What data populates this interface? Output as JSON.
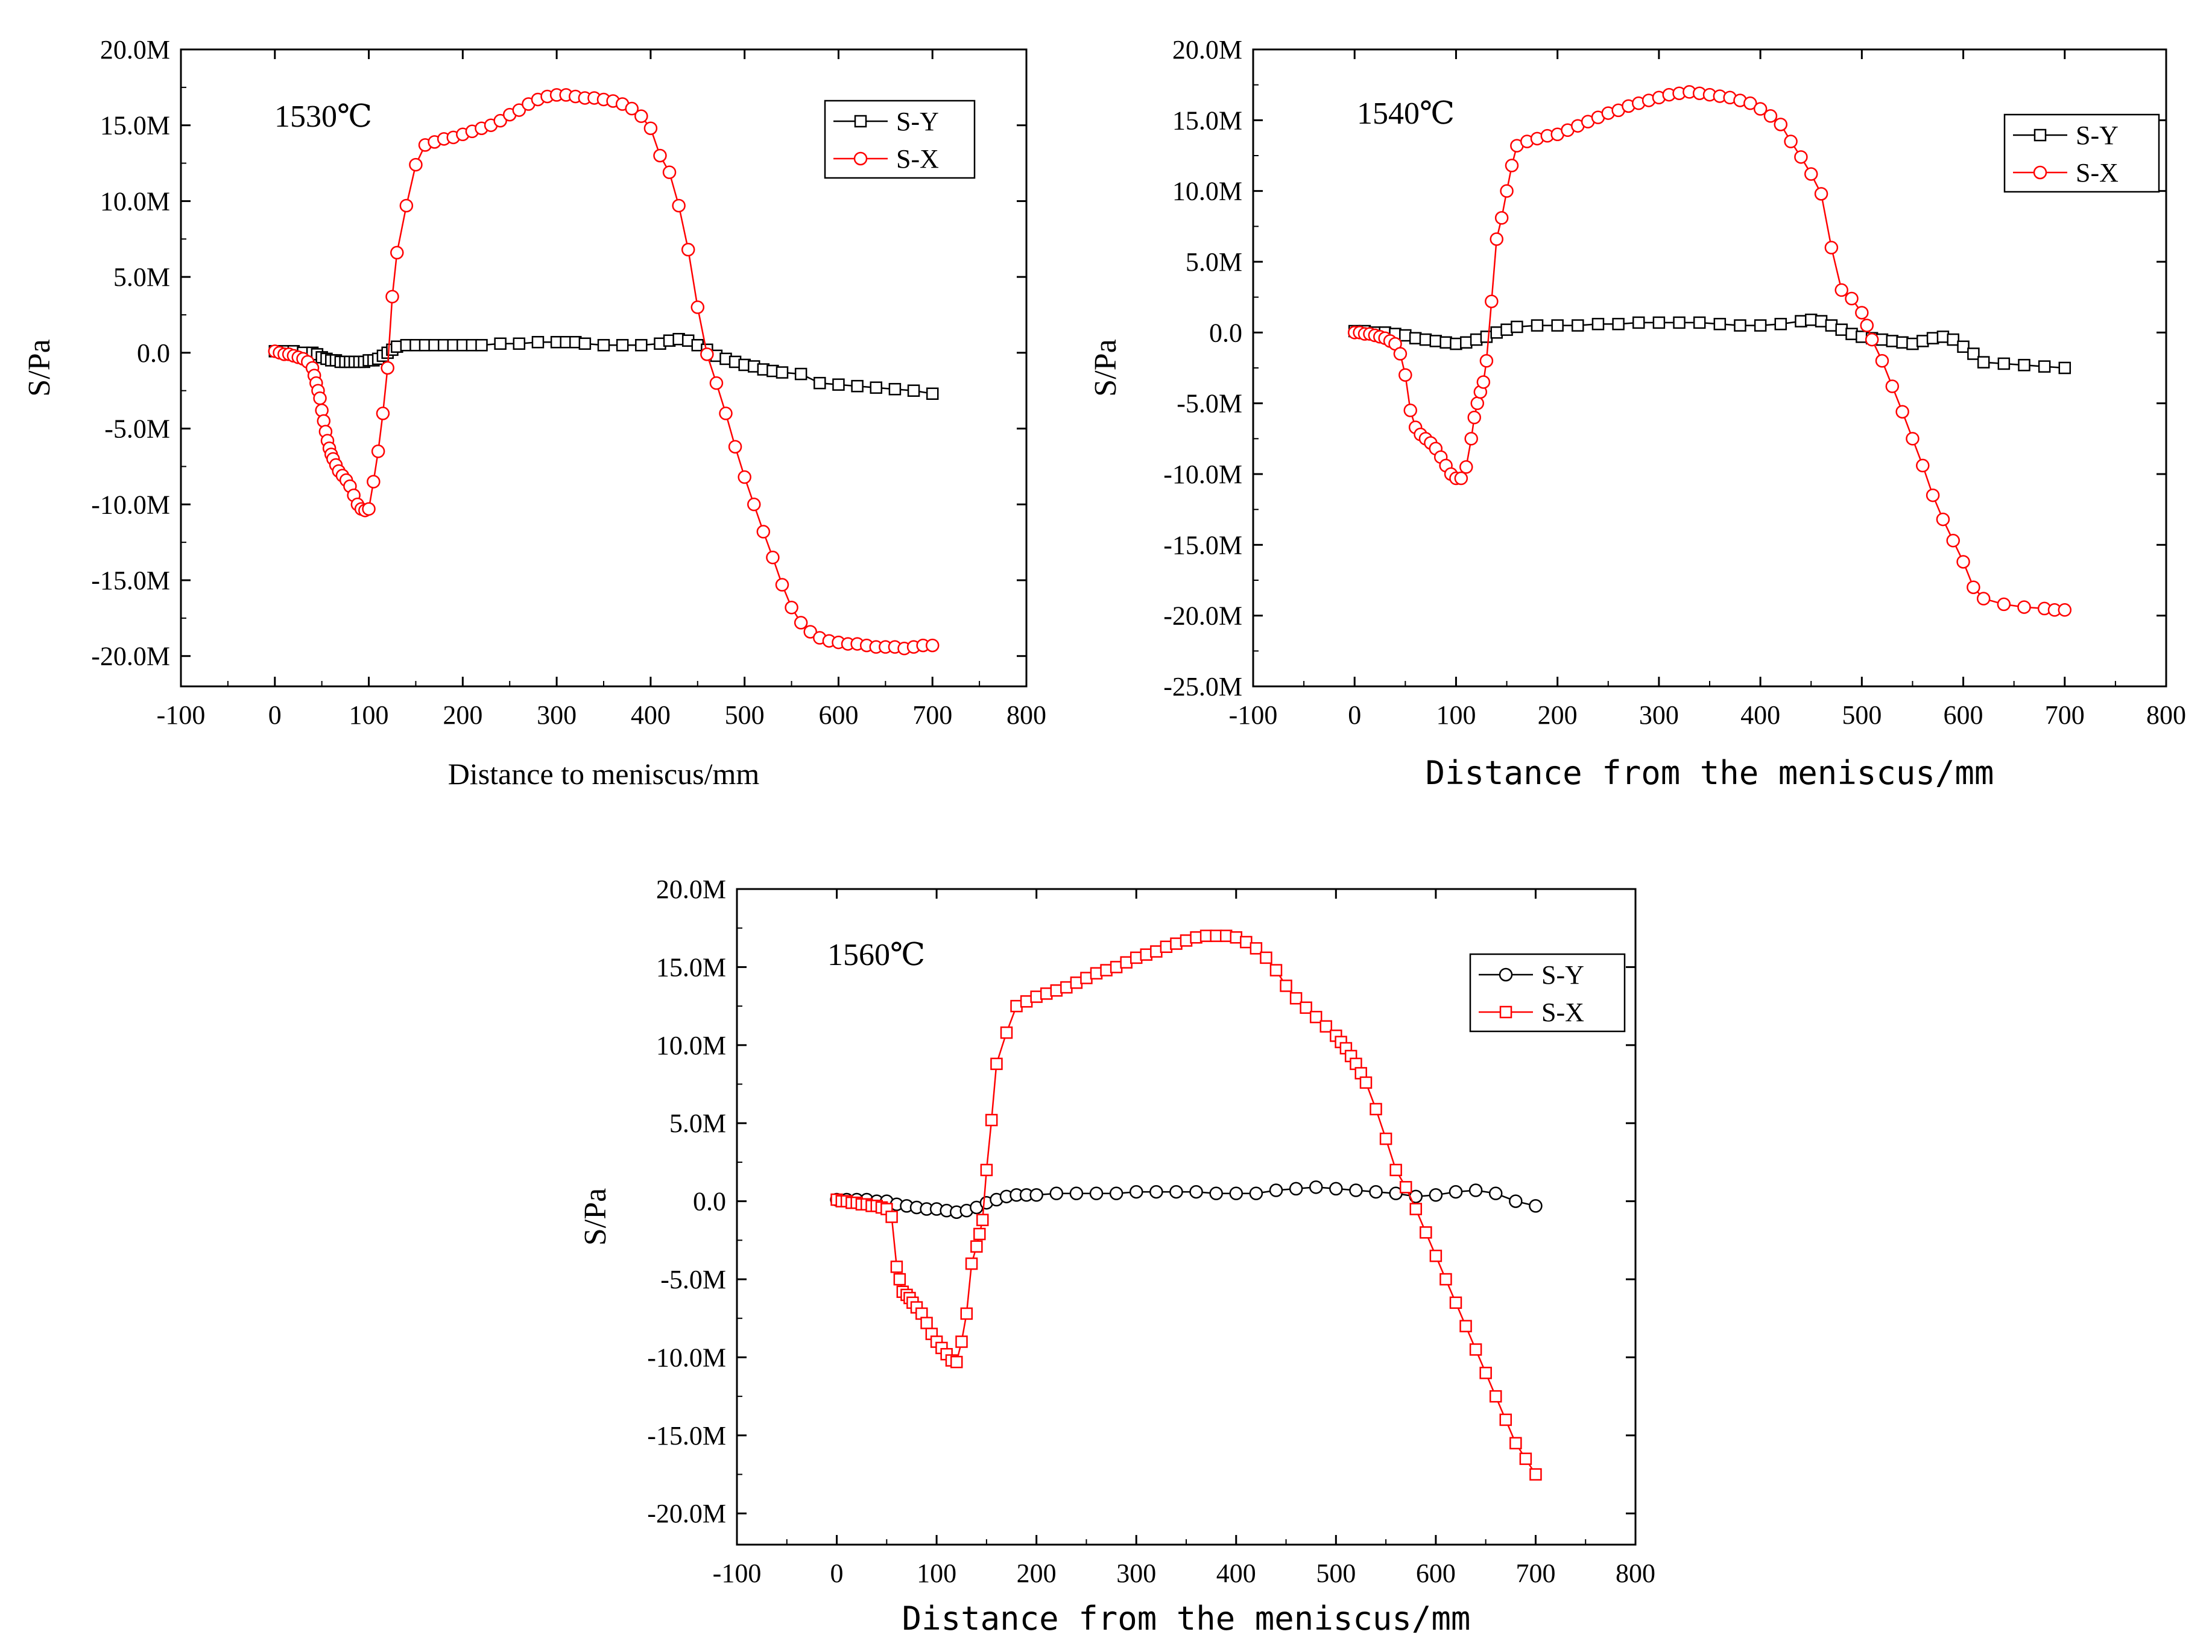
{
  "colors": {
    "sy": "#000000",
    "sx": "#ff0000",
    "axis": "#000000",
    "background": "#ffffff"
  },
  "chart_data": [
    {
      "type": "line",
      "title": "",
      "annotation": "1530℃",
      "xlabel": "Distance to meniscus/mm",
      "ylabel": "S/Pa",
      "xlim": [
        -100,
        800
      ],
      "ylim": [
        -22,
        20
      ],
      "xticks": [
        -100,
        0,
        100,
        200,
        300,
        400,
        500,
        600,
        700,
        800
      ],
      "xtick_labels": [
        "-100",
        "0",
        "100",
        "200",
        "300",
        "400",
        "500",
        "600",
        "700",
        "800"
      ],
      "yticks": [
        20,
        15,
        10,
        5,
        0,
        -5,
        -10,
        -15,
        -20
      ],
      "ytick_labels": [
        "20.0M",
        "15.0M",
        "10.0M",
        "5.0M",
        "0.0",
        "-5.0M",
        "-10.0M",
        "-15.0M",
        "-20.0M"
      ],
      "y_unit_note": "values in MPa (M)",
      "legend_position": "top-right",
      "series": [
        {
          "name": "S-Y",
          "marker": "square",
          "color": "#000000",
          "x": [
            0,
            10,
            20,
            30,
            40,
            45,
            50,
            55,
            60,
            65,
            70,
            75,
            80,
            85,
            90,
            95,
            100,
            105,
            110,
            115,
            120,
            125,
            130,
            140,
            150,
            160,
            170,
            180,
            190,
            200,
            210,
            220,
            240,
            260,
            280,
            300,
            310,
            320,
            330,
            350,
            370,
            390,
            410,
            420,
            430,
            440,
            450,
            460,
            470,
            480,
            490,
            500,
            510,
            520,
            530,
            540,
            560,
            580,
            600,
            620,
            640,
            660,
            680,
            700
          ],
          "y": [
            0.1,
            0.1,
            0.1,
            0.0,
            0.0,
            -0.1,
            -0.3,
            -0.4,
            -0.5,
            -0.5,
            -0.6,
            -0.6,
            -0.6,
            -0.6,
            -0.6,
            -0.6,
            -0.5,
            -0.5,
            -0.4,
            -0.2,
            0.0,
            0.2,
            0.4,
            0.5,
            0.5,
            0.5,
            0.5,
            0.5,
            0.5,
            0.5,
            0.5,
            0.5,
            0.6,
            0.6,
            0.7,
            0.7,
            0.7,
            0.7,
            0.6,
            0.5,
            0.5,
            0.5,
            0.6,
            0.8,
            0.9,
            0.8,
            0.5,
            0.2,
            -0.2,
            -0.4,
            -0.6,
            -0.8,
            -0.9,
            -1.1,
            -1.2,
            -1.3,
            -1.4,
            -2.0,
            -2.1,
            -2.2,
            -2.3,
            -2.4,
            -2.5,
            -2.7
          ]
        },
        {
          "name": "S-X",
          "marker": "circle",
          "color": "#ff0000",
          "x": [
            0,
            5,
            10,
            15,
            20,
            25,
            30,
            35,
            40,
            42,
            44,
            46,
            48,
            50,
            52,
            54,
            56,
            58,
            60,
            62,
            65,
            68,
            72,
            76,
            80,
            84,
            88,
            92,
            96,
            100,
            105,
            110,
            115,
            120,
            125,
            130,
            140,
            150,
            160,
            170,
            180,
            190,
            200,
            210,
            220,
            230,
            240,
            250,
            260,
            270,
            280,
            290,
            300,
            310,
            320,
            330,
            340,
            350,
            360,
            370,
            380,
            390,
            400,
            410,
            420,
            430,
            440,
            450,
            460,
            470,
            480,
            490,
            500,
            510,
            520,
            530,
            540,
            550,
            560,
            570,
            580,
            590,
            600,
            610,
            620,
            630,
            640,
            650,
            660,
            670,
            680,
            690,
            700
          ],
          "y": [
            0.1,
            0.0,
            -0.1,
            -0.1,
            -0.2,
            -0.3,
            -0.4,
            -0.6,
            -1.0,
            -1.5,
            -2.0,
            -2.5,
            -3.0,
            -3.8,
            -4.5,
            -5.2,
            -5.8,
            -6.3,
            -6.7,
            -7.0,
            -7.4,
            -7.8,
            -8.1,
            -8.4,
            -8.8,
            -9.4,
            -10.0,
            -10.3,
            -10.4,
            -10.3,
            -8.5,
            -6.5,
            -4.0,
            -1.0,
            3.7,
            6.6,
            9.7,
            12.4,
            13.7,
            13.9,
            14.1,
            14.2,
            14.4,
            14.6,
            14.8,
            15.0,
            15.3,
            15.7,
            16.0,
            16.4,
            16.7,
            16.9,
            17.0,
            17.0,
            16.9,
            16.8,
            16.8,
            16.7,
            16.6,
            16.4,
            16.1,
            15.6,
            14.8,
            13.0,
            11.9,
            9.7,
            6.8,
            3.0,
            -0.1,
            -2.0,
            -4.0,
            -6.2,
            -8.2,
            -10.0,
            -11.8,
            -13.5,
            -15.3,
            -16.8,
            -17.8,
            -18.4,
            -18.8,
            -19.0,
            -19.1,
            -19.2,
            -19.2,
            -19.3,
            -19.4,
            -19.4,
            -19.4,
            -19.5,
            -19.4,
            -19.3,
            -19.3
          ]
        }
      ]
    },
    {
      "type": "line",
      "title": "",
      "annotation": "1540℃",
      "xlabel": "Distance from the meniscus/mm",
      "ylabel": "S/Pa",
      "xlim": [
        -100,
        800
      ],
      "ylim": [
        -25,
        20
      ],
      "xticks": [
        -100,
        0,
        100,
        200,
        300,
        400,
        500,
        600,
        700,
        800
      ],
      "xtick_labels": [
        "-100",
        "0",
        "100",
        "200",
        "300",
        "400",
        "500",
        "600",
        "700",
        "800"
      ],
      "yticks": [
        20,
        15,
        10,
        5,
        0,
        -5,
        -10,
        -15,
        -20,
        -25
      ],
      "ytick_labels": [
        "20.0M",
        "15.0M",
        "10.0M",
        "5.0M",
        "0.0",
        "-5.0M",
        "-10.0M",
        "-15.0M",
        "-20.0M",
        "-25.0M"
      ],
      "y_unit_note": "values in MPa (M)",
      "legend_position": "top-right",
      "series": [
        {
          "name": "S-Y",
          "marker": "square",
          "color": "#000000",
          "x": [
            0,
            10,
            20,
            30,
            40,
            50,
            60,
            70,
            80,
            90,
            100,
            110,
            120,
            130,
            140,
            150,
            160,
            180,
            200,
            220,
            240,
            260,
            280,
            300,
            320,
            340,
            360,
            380,
            400,
            420,
            440,
            450,
            460,
            470,
            480,
            490,
            500,
            510,
            520,
            530,
            540,
            550,
            560,
            570,
            580,
            590,
            600,
            610,
            620,
            640,
            660,
            680,
            700
          ],
          "y": [
            0.1,
            0.1,
            0.0,
            0.0,
            -0.1,
            -0.2,
            -0.4,
            -0.5,
            -0.6,
            -0.7,
            -0.8,
            -0.7,
            -0.5,
            -0.3,
            0.0,
            0.2,
            0.4,
            0.5,
            0.5,
            0.5,
            0.6,
            0.6,
            0.7,
            0.7,
            0.7,
            0.7,
            0.6,
            0.5,
            0.5,
            0.6,
            0.8,
            0.9,
            0.8,
            0.5,
            0.2,
            -0.1,
            -0.3,
            -0.4,
            -0.5,
            -0.6,
            -0.7,
            -0.8,
            -0.6,
            -0.4,
            -0.3,
            -0.5,
            -1.0,
            -1.5,
            -2.1,
            -2.2,
            -2.3,
            -2.4,
            -2.5
          ]
        },
        {
          "name": "S-X",
          "marker": "circle",
          "color": "#ff0000",
          "x": [
            0,
            5,
            10,
            15,
            20,
            25,
            30,
            35,
            40,
            45,
            50,
            55,
            60,
            65,
            70,
            75,
            80,
            85,
            90,
            95,
            100,
            105,
            110,
            115,
            118,
            121,
            124,
            127,
            130,
            135,
            140,
            145,
            150,
            155,
            160,
            170,
            180,
            190,
            200,
            210,
            220,
            230,
            240,
            250,
            260,
            270,
            280,
            290,
            300,
            310,
            320,
            330,
            340,
            350,
            360,
            370,
            380,
            390,
            400,
            410,
            420,
            430,
            440,
            450,
            460,
            470,
            480,
            490,
            500,
            505,
            510,
            520,
            530,
            540,
            550,
            560,
            570,
            580,
            590,
            600,
            610,
            620,
            640,
            660,
            680,
            690,
            700
          ],
          "y": [
            0.0,
            0.0,
            -0.1,
            -0.1,
            -0.2,
            -0.3,
            -0.4,
            -0.6,
            -0.8,
            -1.5,
            -3.0,
            -5.5,
            -6.7,
            -7.2,
            -7.5,
            -7.8,
            -8.2,
            -8.8,
            -9.4,
            -10.0,
            -10.3,
            -10.3,
            -9.5,
            -7.5,
            -6.0,
            -5.0,
            -4.2,
            -3.5,
            -2.0,
            2.2,
            6.6,
            8.1,
            10.0,
            11.8,
            13.2,
            13.5,
            13.7,
            13.9,
            14.0,
            14.3,
            14.6,
            14.9,
            15.2,
            15.5,
            15.7,
            16.0,
            16.2,
            16.4,
            16.6,
            16.8,
            16.9,
            17.0,
            16.9,
            16.8,
            16.7,
            16.6,
            16.4,
            16.2,
            15.8,
            15.3,
            14.7,
            13.5,
            12.4,
            11.2,
            9.8,
            6.0,
            3.0,
            2.4,
            1.4,
            0.5,
            -0.5,
            -2.0,
            -3.8,
            -5.6,
            -7.5,
            -9.4,
            -11.5,
            -13.2,
            -14.7,
            -16.2,
            -18.0,
            -18.8,
            -19.2,
            -19.4,
            -19.5,
            -19.6,
            -19.6
          ]
        }
      ]
    },
    {
      "type": "line",
      "title": "",
      "annotation": "1560℃",
      "xlabel": "Distance from the meniscus/mm",
      "ylabel": "S/Pa",
      "xlim": [
        -100,
        800
      ],
      "ylim": [
        -22,
        20
      ],
      "xticks": [
        -100,
        0,
        100,
        200,
        300,
        400,
        500,
        600,
        700,
        800
      ],
      "xtick_labels": [
        "-100",
        "0",
        "100",
        "200",
        "300",
        "400",
        "500",
        "600",
        "700",
        "800"
      ],
      "yticks": [
        20,
        15,
        10,
        5,
        0,
        -5,
        -10,
        -15,
        -20
      ],
      "ytick_labels": [
        "20.0M",
        "15.0M",
        "10.0M",
        "5.0M",
        "0.0",
        "-5.0M",
        "-10.0M",
        "-15.0M",
        "-20.0M"
      ],
      "y_unit_note": "values in MPa (M)",
      "legend_position": "top-right",
      "series": [
        {
          "name": "S-Y",
          "marker": "circle",
          "color": "#000000",
          "x": [
            0,
            10,
            20,
            30,
            40,
            50,
            60,
            70,
            80,
            90,
            100,
            110,
            120,
            130,
            140,
            150,
            160,
            170,
            180,
            190,
            200,
            220,
            240,
            260,
            280,
            300,
            320,
            340,
            360,
            380,
            400,
            420,
            440,
            460,
            480,
            500,
            520,
            540,
            560,
            580,
            600,
            620,
            640,
            660,
            680,
            700
          ],
          "y": [
            0.1,
            0.1,
            0.1,
            0.1,
            0.0,
            0.0,
            -0.2,
            -0.3,
            -0.4,
            -0.5,
            -0.5,
            -0.6,
            -0.7,
            -0.6,
            -0.4,
            -0.1,
            0.1,
            0.3,
            0.4,
            0.4,
            0.4,
            0.5,
            0.5,
            0.5,
            0.5,
            0.6,
            0.6,
            0.6,
            0.6,
            0.5,
            0.5,
            0.5,
            0.7,
            0.8,
            0.9,
            0.8,
            0.7,
            0.6,
            0.5,
            0.3,
            0.4,
            0.6,
            0.7,
            0.5,
            0.0,
            -0.3
          ]
        },
        {
          "name": "S-X",
          "marker": "square",
          "color": "#ff0000",
          "x": [
            0,
            5,
            10,
            15,
            20,
            25,
            30,
            35,
            40,
            45,
            50,
            55,
            60,
            63,
            66,
            70,
            73,
            76,
            80,
            85,
            90,
            95,
            100,
            105,
            110,
            115,
            120,
            125,
            130,
            135,
            140,
            143,
            146,
            150,
            155,
            160,
            170,
            180,
            190,
            200,
            210,
            220,
            230,
            240,
            250,
            260,
            270,
            280,
            290,
            300,
            310,
            320,
            330,
            340,
            350,
            360,
            370,
            380,
            390,
            400,
            410,
            420,
            430,
            440,
            450,
            460,
            470,
            480,
            490,
            500,
            505,
            510,
            515,
            520,
            525,
            530,
            540,
            550,
            560,
            570,
            580,
            590,
            600,
            610,
            620,
            630,
            640,
            650,
            660,
            670,
            680,
            690,
            700
          ],
          "y": [
            0.1,
            0.0,
            0.0,
            -0.1,
            -0.1,
            -0.2,
            -0.2,
            -0.3,
            -0.3,
            -0.4,
            -0.5,
            -1.0,
            -4.2,
            -5.0,
            -5.8,
            -6.0,
            -6.2,
            -6.5,
            -6.8,
            -7.2,
            -7.8,
            -8.5,
            -9.0,
            -9.4,
            -9.8,
            -10.2,
            -10.3,
            -9.0,
            -7.2,
            -4.0,
            -2.9,
            -2.1,
            -1.2,
            2.0,
            5.2,
            8.8,
            10.8,
            12.5,
            12.8,
            13.1,
            13.3,
            13.5,
            13.7,
            14.0,
            14.3,
            14.6,
            14.8,
            15.0,
            15.3,
            15.6,
            15.8,
            16.0,
            16.3,
            16.5,
            16.7,
            16.9,
            17.0,
            17.0,
            17.0,
            16.9,
            16.6,
            16.2,
            15.6,
            14.8,
            13.8,
            13.0,
            12.4,
            11.8,
            11.2,
            10.6,
            10.2,
            9.8,
            9.3,
            8.8,
            8.2,
            7.6,
            5.9,
            4.0,
            2.0,
            0.9,
            -0.5,
            -2.0,
            -3.5,
            -5.0,
            -6.5,
            -8.0,
            -9.5,
            -11.0,
            -12.5,
            -14.0,
            -15.5,
            -16.5,
            -17.5
          ]
        }
      ]
    }
  ]
}
